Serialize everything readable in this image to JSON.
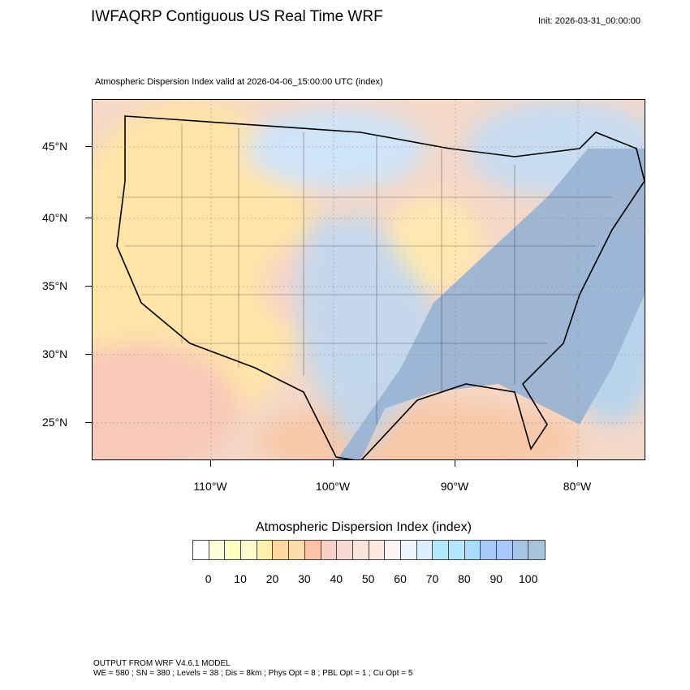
{
  "header": {
    "title": "IWFAQRP Contiguous US Real Time WRF",
    "init": "Init: 2026-03-31_00:00:00"
  },
  "plot": {
    "subtitle": "Atmospheric Dispersion Index valid at 2026-04-06_15:00:00 UTC   (index)"
  },
  "map": {
    "lat_labels": [
      "45°N",
      "40°N",
      "35°N",
      "30°N",
      "25°N"
    ],
    "lon_labels": [
      "110°W",
      "100°W",
      "90°W",
      "80°W"
    ],
    "ocean_color": "#a8c4dc",
    "land_low_color": "#ffe0a8",
    "land_high_color": "#a8c4e4"
  },
  "legend": {
    "title": "Atmospheric Dispersion Index  (index)",
    "labels": [
      "0",
      "10",
      "20",
      "30",
      "40",
      "50",
      "60",
      "70",
      "80",
      "90",
      "100"
    ],
    "colors": [
      "#ffffff",
      "#fffcd8",
      "#ffffc0",
      "#fefacc",
      "#fff0aa",
      "#ffd8a0",
      "#ffdcaa",
      "#ffc0a8",
      "#f8d0c8",
      "#f8d8d0",
      "#f8e4d8",
      "#fde8e0",
      "#fff4f4",
      "#eef4ff",
      "#dceeff",
      "#b0e8ff",
      "#b4e8ff",
      "#a8dcf8",
      "#a8c8f8",
      "#a8c8fc",
      "#a8c4e4",
      "#a8c4dc"
    ]
  },
  "footer": {
    "line1": "OUTPUT FROM WRF V4.6.1 MODEL",
    "line2": "WE = 580 ; SN = 380 ; Levels = 38 ; Dis = 8km ; Phys Opt = 8 ; PBL Opt = 1 ; Cu Opt = 5"
  }
}
